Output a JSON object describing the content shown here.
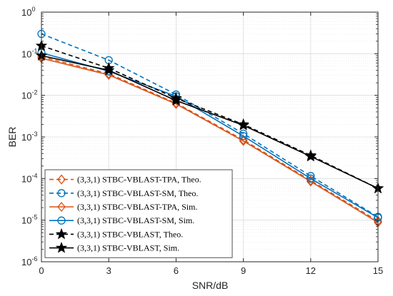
{
  "chart_data": {
    "type": "line",
    "xlabel": "SNR/dB",
    "ylabel": "BER",
    "x_ticks": [
      "0",
      "3",
      "6",
      "9",
      "12",
      "15"
    ],
    "x_tick_values": [
      0,
      3,
      6,
      9,
      12,
      15
    ],
    "y_tick_exponents": [
      0,
      -1,
      -2,
      -3,
      -4,
      -5,
      -6
    ],
    "xlim": [
      0,
      15
    ],
    "ylim": [
      1e-06,
      1
    ],
    "yscale": "log",
    "grid": true,
    "minor_grid": true,
    "legend_position": "bottom-left",
    "x": [
      0,
      3,
      6,
      9,
      12,
      15
    ],
    "series": [
      {
        "name": "(3,3,1) STBC-VBLAST-TPA, Theo.",
        "color": "#D95319",
        "line": "dashed",
        "marker": "diamond",
        "values": [
          0.085,
          0.033,
          0.0065,
          0.00085,
          9e-05,
          9.5e-06
        ]
      },
      {
        "name": "(3,3,1) STBC-VBLAST-SM, Theo.",
        "color": "#0072BD",
        "line": "dashed",
        "marker": "circle",
        "values": [
          0.3,
          0.07,
          0.0105,
          0.0012,
          0.000115,
          1.2e-05
        ]
      },
      {
        "name": "(3,3,1) STBC-VBLAST-TPA, Sim.",
        "color": "#D95319",
        "line": "solid",
        "marker": "diamond",
        "values": [
          0.078,
          0.031,
          0.0062,
          0.0008,
          8.5e-05,
          8.8e-06
        ]
      },
      {
        "name": "(3,3,1) STBC-VBLAST-SM, Sim.",
        "color": "#0072BD",
        "line": "solid",
        "marker": "circle",
        "values": [
          0.105,
          0.038,
          0.0095,
          0.00105,
          0.0001,
          1.15e-05
        ]
      },
      {
        "name": "(3,3,1) STBC-VBLAST, Theo.",
        "color": "#000000",
        "line": "dashed",
        "marker": "star",
        "values": [
          0.155,
          0.045,
          0.0085,
          0.002,
          0.00036,
          5.8e-05
        ]
      },
      {
        "name": "(3,3,1) STBC-VBLAST, Sim.",
        "color": "#000000",
        "line": "solid",
        "marker": "star",
        "values": [
          0.09,
          0.04,
          0.0075,
          0.0019,
          0.00034,
          5.8e-05
        ]
      }
    ]
  }
}
